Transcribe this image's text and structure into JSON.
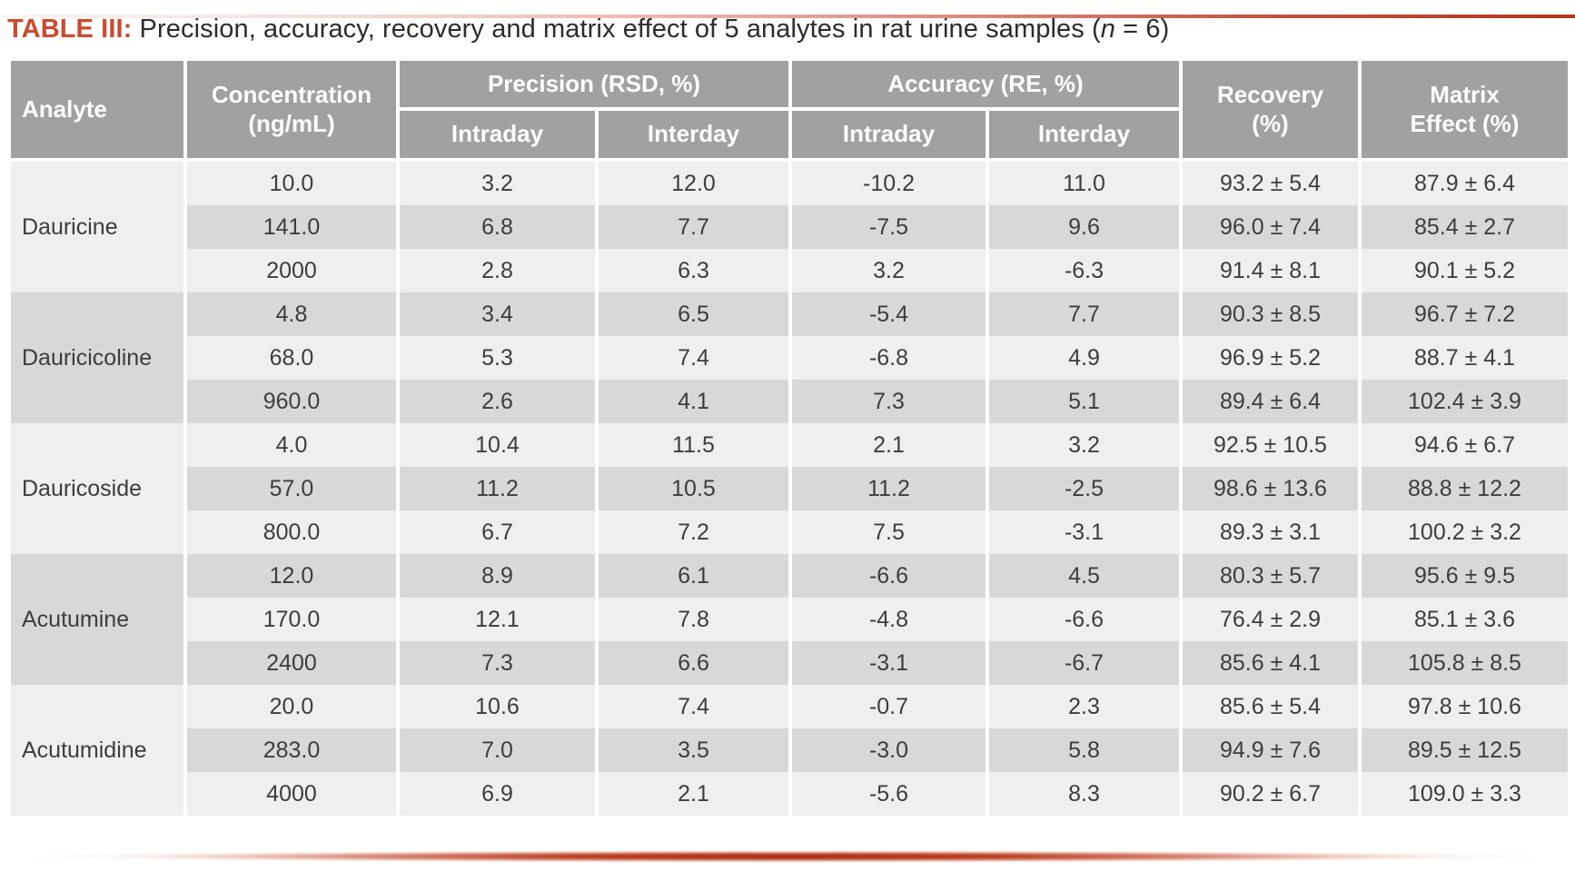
{
  "page": {
    "title_label": "TABLE III:",
    "title_text": " Precision, accuracy, recovery and matrix effect of 5 analytes in rat urine samples (",
    "title_var": "n",
    "title_suffix": " = 6)"
  },
  "colors": {
    "accent": "#cc4a2e",
    "header_bg": "#a1a1a1",
    "row_light": "#efefef",
    "row_dark": "#d8d8d8",
    "header_text": "#ffffff",
    "body_text": "#3d3d3d",
    "rule_red": "#b43620"
  },
  "table": {
    "headers": {
      "analyte": "Analyte",
      "concentration": "Concentration\n(ng/mL)",
      "precision_group": "Precision (RSD, %)",
      "accuracy_group": "Accuracy (RE, %)",
      "precision_intraday": "Intraday",
      "precision_interday": "Interday",
      "accuracy_intraday": "Intraday",
      "accuracy_interday": "Interday",
      "recovery": "Recovery\n(%)",
      "matrix_effect": "Matrix\nEffect (%)"
    },
    "column_order": [
      "concentration",
      "precision_intraday",
      "precision_interday",
      "accuracy_intraday",
      "accuracy_interday",
      "recovery",
      "matrix_effect"
    ],
    "groups": [
      {
        "analyte": "Dauricine",
        "rows": [
          [
            "10.0",
            "3.2",
            "12.0",
            "-10.2",
            "11.0",
            "93.2 ± 5.4",
            "87.9 ± 6.4"
          ],
          [
            "141.0",
            "6.8",
            "7.7",
            "-7.5",
            "9.6",
            "96.0 ± 7.4",
            "85.4 ± 2.7"
          ],
          [
            "2000",
            "2.8",
            "6.3",
            "3.2",
            "-6.3",
            "91.4 ± 8.1",
            "90.1 ± 5.2"
          ]
        ]
      },
      {
        "analyte": "Dauricicoline",
        "rows": [
          [
            "4.8",
            "3.4",
            "6.5",
            "-5.4",
            "7.7",
            "90.3 ± 8.5",
            "96.7 ± 7.2"
          ],
          [
            "68.0",
            "5.3",
            "7.4",
            "-6.8",
            "4.9",
            "96.9 ± 5.2",
            "88.7 ± 4.1"
          ],
          [
            "960.0",
            "2.6",
            "4.1",
            "7.3",
            "5.1",
            "89.4 ± 6.4",
            "102.4 ± 3.9"
          ]
        ]
      },
      {
        "analyte": "Dauricoside",
        "rows": [
          [
            "4.0",
            "10.4",
            "11.5",
            "2.1",
            "3.2",
            "92.5 ± 10.5",
            "94.6 ± 6.7"
          ],
          [
            "57.0",
            "11.2",
            "10.5",
            "11.2",
            "-2.5",
            "98.6 ± 13.6",
            "88.8 ± 12.2"
          ],
          [
            "800.0",
            "6.7",
            "7.2",
            "7.5",
            "-3.1",
            "89.3 ± 3.1",
            "100.2 ± 3.2"
          ]
        ]
      },
      {
        "analyte": "Acutumine",
        "rows": [
          [
            "12.0",
            "8.9",
            "6.1",
            "-6.6",
            "4.5",
            "80.3 ± 5.7",
            "95.6 ± 9.5"
          ],
          [
            "170.0",
            "12.1",
            "7.8",
            "-4.8",
            "-6.6",
            "76.4 ± 2.9",
            "85.1 ± 3.6"
          ],
          [
            "2400",
            "7.3",
            "6.6",
            "-3.1",
            "-6.7",
            "85.6 ± 4.1",
            "105.8 ± 8.5"
          ]
        ]
      },
      {
        "analyte": "Acutumidine",
        "rows": [
          [
            "20.0",
            "10.6",
            "7.4",
            "-0.7",
            "2.3",
            "85.6 ± 5.4",
            "97.8 ± 10.6"
          ],
          [
            "283.0",
            "7.0",
            "3.5",
            "-3.0",
            "5.8",
            "94.9 ± 7.6",
            "89.5 ± 12.5"
          ],
          [
            "4000",
            "6.9",
            "2.1",
            "-5.6",
            "8.3",
            "90.2 ± 6.7",
            "109.0 ± 3.3"
          ]
        ]
      }
    ]
  }
}
